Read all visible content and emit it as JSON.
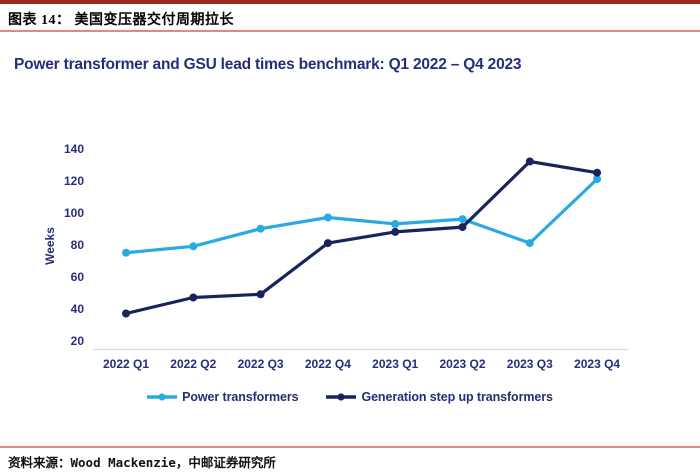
{
  "header": {
    "caption": "图表 14： 美国变压器交付周期拉长"
  },
  "chart_data": {
    "type": "line",
    "title": "Power transformer and GSU lead times benchmark: Q1 2022 – Q4 2023",
    "categories": [
      "2022 Q1",
      "2022 Q2",
      "2022 Q3",
      "2022 Q4",
      "2023 Q1",
      "2023 Q2",
      "2023 Q3",
      "2023 Q4"
    ],
    "series": [
      {
        "name": "Power transformers",
        "color": "#29ABE2",
        "values": [
          75,
          79,
          90,
          97,
          93,
          96,
          81,
          121
        ]
      },
      {
        "name": "Generation step up transformers",
        "color": "#18245C",
        "values": [
          37,
          47,
          49,
          81,
          88,
          91,
          132,
          125
        ]
      }
    ],
    "xlabel": "",
    "ylabel": "Weeks",
    "yticks": [
      20,
      40,
      60,
      80,
      100,
      120,
      140
    ],
    "ylim": [
      20,
      140
    ],
    "grid": false,
    "legend_position": "bottom"
  },
  "footer": {
    "source": "资料来源：Wood Mackenzie，中邮证券研究所"
  },
  "colors": {
    "top_bar": "#9C2822",
    "divider": "#E38784",
    "title_text": "#272D78",
    "axis_line": "#DCDCDC",
    "series_blue": "#29ABE2",
    "series_navy": "#18245C"
  }
}
